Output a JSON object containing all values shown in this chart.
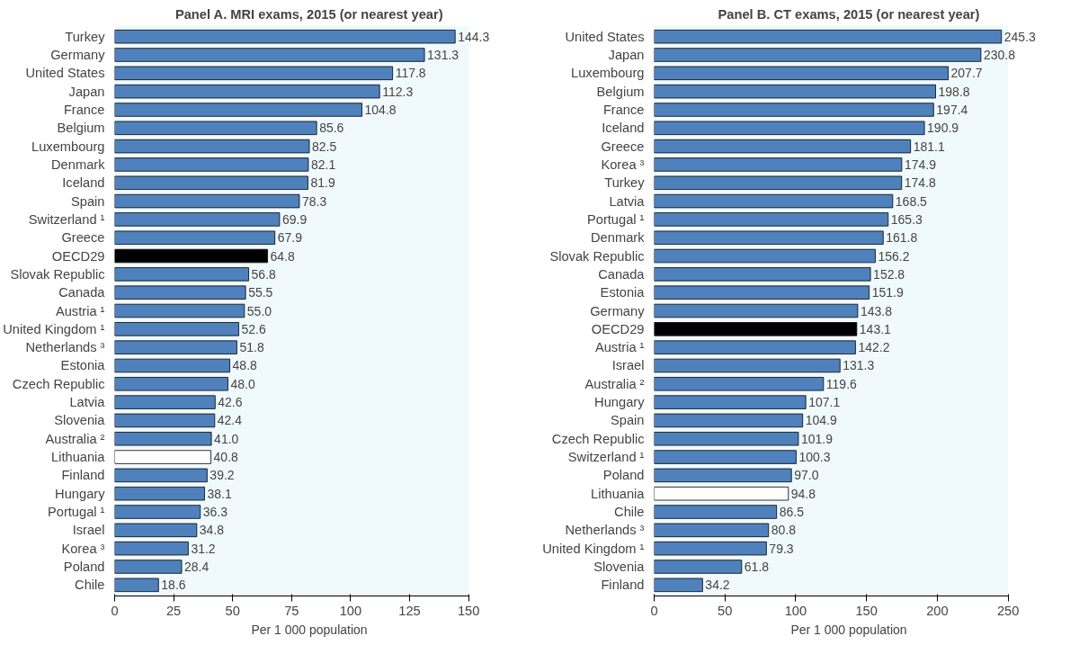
{
  "chart_data": [
    {
      "type": "bar",
      "orientation": "horizontal",
      "title": "Panel A. MRI exams, 2015 (or nearest year)",
      "xlabel": "Per 1 000 population",
      "categories": [
        "Turkey",
        "Germany",
        "United States",
        "Japan",
        "France",
        "Belgium",
        "Luxembourg",
        "Denmark",
        "Iceland",
        "Spain",
        "Switzerland ¹",
        "Greece",
        "OECD29",
        "Slovak Republic",
        "Canada",
        "Austria ¹",
        "United Kingdom ¹",
        "Netherlands ³",
        "Estonia",
        "Czech Republic",
        "Latvia",
        "Slovenia",
        "Australia ²",
        "Lithuania",
        "Finland",
        "Hungary",
        "Portugal ¹",
        "Israel",
        "Korea ³",
        "Poland",
        "Chile"
      ],
      "values": [
        144.3,
        131.3,
        117.8,
        112.3,
        104.8,
        85.6,
        82.5,
        82.1,
        81.9,
        78.3,
        69.9,
        67.9,
        64.8,
        56.8,
        55.5,
        55.0,
        52.6,
        51.8,
        48.8,
        48.0,
        42.6,
        42.4,
        41.0,
        40.8,
        39.2,
        38.1,
        36.3,
        34.8,
        31.2,
        28.4,
        18.6
      ],
      "colors": [
        "#4f81bd",
        "#4f81bd",
        "#4f81bd",
        "#4f81bd",
        "#4f81bd",
        "#4f81bd",
        "#4f81bd",
        "#4f81bd",
        "#4f81bd",
        "#4f81bd",
        "#4f81bd",
        "#4f81bd",
        "#000000",
        "#4f81bd",
        "#4f81bd",
        "#4f81bd",
        "#4f81bd",
        "#4f81bd",
        "#4f81bd",
        "#4f81bd",
        "#4f81bd",
        "#4f81bd",
        "#4f81bd",
        "#ffffff",
        "#4f81bd",
        "#4f81bd",
        "#4f81bd",
        "#4f81bd",
        "#4f81bd",
        "#4f81bd",
        "#4f81bd"
      ],
      "value_labels": [
        "144.3",
        "131.3",
        "117.8",
        "112.3",
        "104.8",
        "85.6",
        "82.5",
        "82.1",
        "81.9",
        "78.3",
        "69.9",
        "67.9",
        "64.8",
        "56.8",
        "55.5",
        "55.0",
        "52.6",
        "51.8",
        "48.8",
        "48.0",
        "42.6",
        "42.4",
        "41.0",
        "40.8",
        "39.2",
        "38.1",
        "36.3",
        "34.8",
        "31.2",
        "28.4",
        "18.6"
      ],
      "xlim": [
        0,
        150
      ],
      "xticks": [
        0,
        25,
        50,
        75,
        100,
        125,
        150
      ],
      "grid": false
    },
    {
      "type": "bar",
      "orientation": "horizontal",
      "title": "Panel B. CT exams, 2015 (or nearest year)",
      "xlabel": "Per 1 000 population",
      "categories": [
        "United States",
        "Japan",
        "Luxembourg",
        "Belgium",
        "France",
        "Iceland",
        "Greece",
        "Korea ³",
        "Turkey",
        "Latvia",
        "Portugal ¹",
        "Denmark",
        "Slovak Republic",
        "Canada",
        "Estonia",
        "Germany",
        "OECD29",
        "Austria ¹",
        "Israel",
        "Australia ²",
        "Hungary",
        "Spain",
        "Czech Republic",
        "Switzerland ¹",
        "Poland",
        "Lithuania",
        "Chile",
        "Netherlands ³",
        "United Kingdom ¹",
        "Slovenia",
        "Finland"
      ],
      "values": [
        245.3,
        230.8,
        207.7,
        198.8,
        197.4,
        190.9,
        181.1,
        174.9,
        174.8,
        168.5,
        165.3,
        161.8,
        156.2,
        152.8,
        151.9,
        143.8,
        143.1,
        142.2,
        131.3,
        119.6,
        107.1,
        104.9,
        101.9,
        100.3,
        97.0,
        94.8,
        86.5,
        80.8,
        79.3,
        61.8,
        34.2
      ],
      "colors": [
        "#4f81bd",
        "#4f81bd",
        "#4f81bd",
        "#4f81bd",
        "#4f81bd",
        "#4f81bd",
        "#4f81bd",
        "#4f81bd",
        "#4f81bd",
        "#4f81bd",
        "#4f81bd",
        "#4f81bd",
        "#4f81bd",
        "#4f81bd",
        "#4f81bd",
        "#4f81bd",
        "#000000",
        "#4f81bd",
        "#4f81bd",
        "#4f81bd",
        "#4f81bd",
        "#4f81bd",
        "#4f81bd",
        "#4f81bd",
        "#4f81bd",
        "#ffffff",
        "#4f81bd",
        "#4f81bd",
        "#4f81bd",
        "#4f81bd",
        "#4f81bd"
      ],
      "value_labels": [
        "245.3",
        "230.8",
        "207.7",
        "198.8",
        "197.4",
        "190.9",
        "181.1",
        "174.9",
        "174.8",
        "168.5",
        "165.3",
        "161.8",
        "156.2",
        "152.8",
        "151.9",
        "143.8",
        "143.1",
        "142.2",
        "131.3",
        "119.6",
        "107.1",
        "104.9",
        "101.9",
        "100.3",
        "97.0",
        "94.8",
        "86.5",
        "80.8",
        "79.3",
        "61.8",
        "34.2"
      ],
      "xlim": [
        0,
        250
      ],
      "xticks": [
        0,
        50,
        100,
        150,
        200,
        250
      ],
      "grid": false
    }
  ]
}
